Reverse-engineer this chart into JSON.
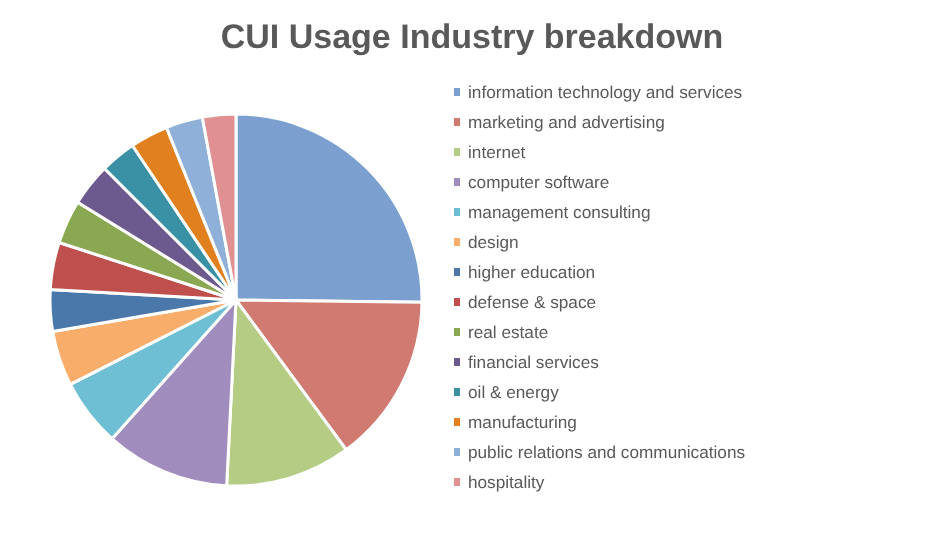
{
  "chart_data": {
    "type": "pie",
    "title": "CUI Usage Industry breakdown",
    "categories": [
      "information technology and services",
      "marketing and advertising",
      "internet",
      "computer software",
      "management consulting",
      "design",
      "higher education",
      "defense & space",
      "real estate",
      "financial services",
      "oil & energy",
      "manufacturing",
      "public relations and communications",
      "hospitality"
    ],
    "values": [
      25.2,
      14.7,
      10.9,
      10.8,
      5.9,
      4.8,
      3.6,
      4.1,
      3.8,
      3.7,
      3.1,
      3.3,
      3.2,
      2.9
    ],
    "colors": [
      "#7ba0cf",
      "#d07a72",
      "#b5cc85",
      "#a08cbd",
      "#6fbfd4",
      "#f9ad6b",
      "#4a78ab",
      "#c0504d",
      "#8aa851",
      "#6c5a8e",
      "#3a90a4",
      "#e0801f",
      "#8fb0d8",
      "#e09090"
    ],
    "legend": "right"
  }
}
